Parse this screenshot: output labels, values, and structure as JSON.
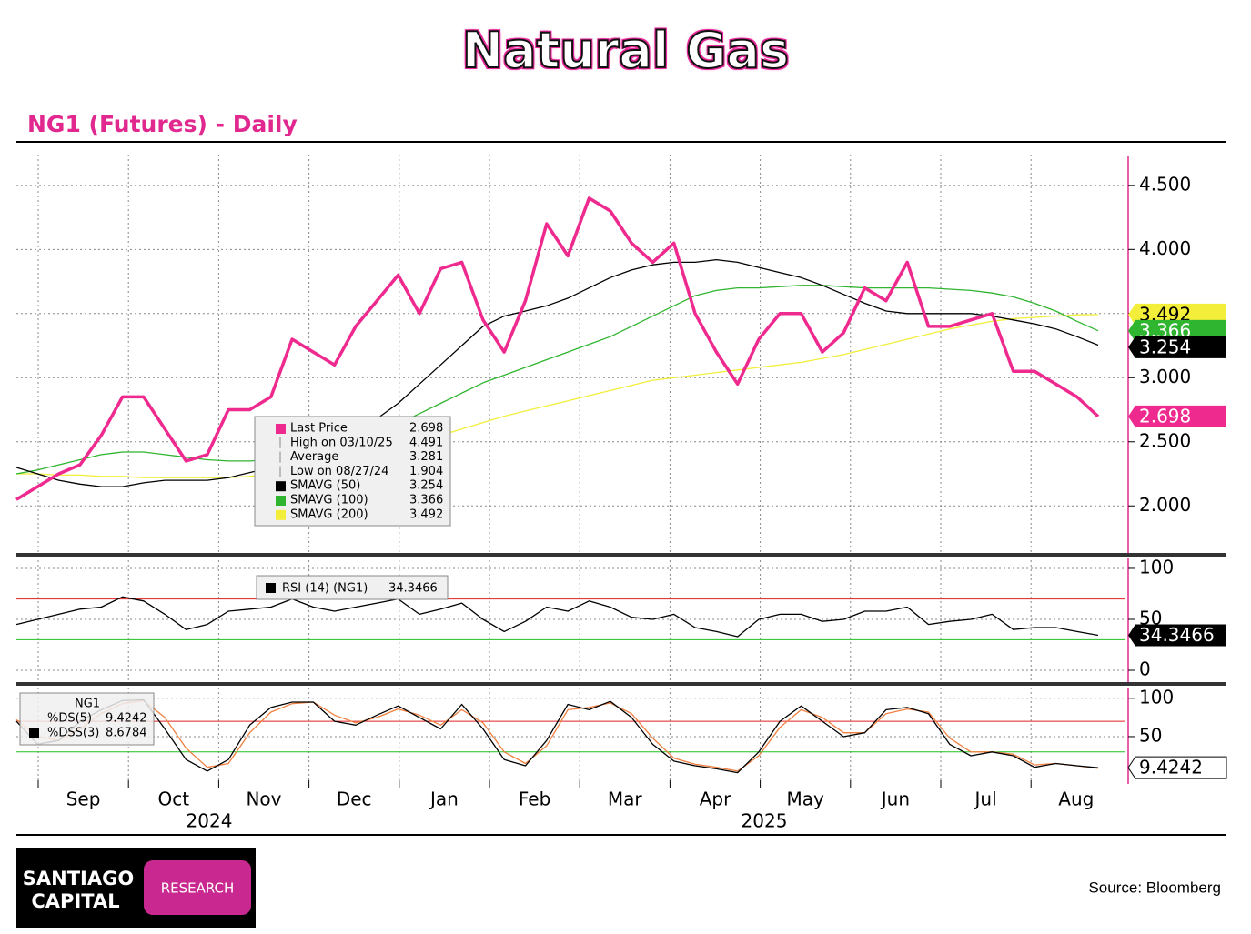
{
  "title": "Natural Gas",
  "subtitle": "NG1 (Futures) - Daily",
  "source": "Source: Bloomberg",
  "logo": {
    "line1": "SANTIAGO",
    "line2": "CAPITAL",
    "badge": "RESEARCH"
  },
  "categories": [
    "Sep",
    "Oct",
    "Nov",
    "Dec",
    "Jan",
    "Feb",
    "Mar",
    "Apr",
    "May",
    "Jun",
    "Jul",
    "Aug"
  ],
  "years": [
    "2024",
    "2025"
  ],
  "chart_data": [
    {
      "type": "line",
      "ylim": [
        1.64,
        4.74
      ],
      "yticks": [
        {
          "value": 2,
          "label": "2.000"
        },
        {
          "value": 2.5,
          "label": "2.500"
        },
        {
          "value": 3,
          "label": "3.000"
        },
        {
          "value": 3.5,
          "label": "3.500"
        },
        {
          "value": 4,
          "label": "4.000"
        },
        {
          "value": 4.5,
          "label": "4.500"
        }
      ],
      "grid": true,
      "series": [
        {
          "name": "Last Price",
          "color": "#ee2a8f",
          "values": [
            2.05,
            2.15,
            2.25,
            2.32,
            2.55,
            2.85,
            2.85,
            2.6,
            2.35,
            2.4,
            2.75,
            2.75,
            2.85,
            3.3,
            3.2,
            3.1,
            3.4,
            3.6,
            3.8,
            3.5,
            3.85,
            3.9,
            3.45,
            3.2,
            3.6,
            4.2,
            3.95,
            4.4,
            4.3,
            4.05,
            3.9,
            4.05,
            3.5,
            3.2,
            2.95,
            3.3,
            3.5,
            3.5,
            3.2,
            3.35,
            3.7,
            3.6,
            3.9,
            3.4,
            3.4,
            3.45,
            3.5,
            3.05,
            3.05,
            2.95,
            2.85,
            2.698
          ]
        },
        {
          "name": "SMAVG (50)",
          "color": "#000000",
          "values": [
            2.3,
            2.25,
            2.2,
            2.17,
            2.15,
            2.15,
            2.18,
            2.2,
            2.2,
            2.2,
            2.22,
            2.26,
            2.3,
            2.36,
            2.43,
            2.5,
            2.58,
            2.68,
            2.8,
            2.95,
            3.1,
            3.25,
            3.4,
            3.48,
            3.52,
            3.56,
            3.62,
            3.7,
            3.78,
            3.84,
            3.88,
            3.9,
            3.9,
            3.92,
            3.9,
            3.86,
            3.82,
            3.78,
            3.72,
            3.65,
            3.58,
            3.52,
            3.5,
            3.5,
            3.5,
            3.5,
            3.48,
            3.45,
            3.42,
            3.38,
            3.32,
            3.254
          ]
        },
        {
          "name": "SMAVG (100)",
          "color": "#2fb52f",
          "values": [
            2.25,
            2.28,
            2.32,
            2.36,
            2.4,
            2.42,
            2.42,
            2.4,
            2.38,
            2.36,
            2.35,
            2.35,
            2.36,
            2.38,
            2.42,
            2.46,
            2.5,
            2.56,
            2.64,
            2.72,
            2.8,
            2.88,
            2.96,
            3.02,
            3.08,
            3.14,
            3.2,
            3.26,
            3.32,
            3.4,
            3.48,
            3.56,
            3.64,
            3.68,
            3.7,
            3.7,
            3.71,
            3.72,
            3.72,
            3.71,
            3.7,
            3.7,
            3.7,
            3.7,
            3.69,
            3.68,
            3.66,
            3.63,
            3.58,
            3.52,
            3.44,
            3.366
          ]
        },
        {
          "name": "SMAVG (200)",
          "color": "#f2ee3a",
          "values": [
            2.25,
            2.25,
            2.24,
            2.24,
            2.23,
            2.23,
            2.22,
            2.22,
            2.22,
            2.22,
            2.22,
            2.23,
            2.25,
            2.28,
            2.31,
            2.34,
            2.38,
            2.42,
            2.46,
            2.5,
            2.55,
            2.6,
            2.65,
            2.7,
            2.74,
            2.78,
            2.82,
            2.86,
            2.9,
            2.94,
            2.98,
            3.0,
            3.02,
            3.04,
            3.06,
            3.08,
            3.1,
            3.12,
            3.15,
            3.18,
            3.22,
            3.26,
            3.3,
            3.34,
            3.38,
            3.41,
            3.44,
            3.46,
            3.47,
            3.48,
            3.49,
            3.492
          ]
        }
      ],
      "stats": [
        {
          "label": "High on 03/10/25",
          "value": 4.491
        },
        {
          "label": "Average",
          "value": 3.281
        },
        {
          "label": "Low on 08/27/24",
          "value": 1.904
        }
      ]
    },
    {
      "type": "line",
      "ylim": [
        -10.7,
        108
      ],
      "yticks": [
        0,
        50,
        100
      ],
      "grid": true,
      "ref_lines": [
        {
          "value": 70,
          "color": "#e02020"
        },
        {
          "value": 30,
          "color": "#20c020"
        }
      ],
      "series": [
        {
          "name": "RSI (14) (NG1)",
          "color": "#000000",
          "values": [
            45,
            50,
            55,
            60,
            62,
            72,
            68,
            55,
            40,
            45,
            58,
            60,
            62,
            70,
            62,
            58,
            62,
            66,
            70,
            55,
            60,
            66,
            50,
            38,
            48,
            62,
            58,
            68,
            62,
            52,
            50,
            55,
            42,
            38,
            33,
            50,
            55,
            55,
            48,
            50,
            58,
            58,
            62,
            45,
            48,
            50,
            55,
            40,
            42,
            42,
            38,
            34.3466
          ]
        }
      ]
    },
    {
      "type": "line",
      "title": "NG1",
      "ylim": [
        -7,
        114
      ],
      "yticks": [
        50,
        100
      ],
      "grid": true,
      "ref_lines": [
        {
          "value": 70,
          "color": "#e02020"
        },
        {
          "value": 30,
          "color": "#20c020"
        }
      ],
      "series": [
        {
          "name": "%DS(5)",
          "color": "#000000",
          "values": [
            70,
            40,
            45,
            70,
            85,
            97,
            98,
            60,
            20,
            5,
            20,
            65,
            88,
            95,
            95,
            70,
            65,
            78,
            90,
            75,
            60,
            92,
            60,
            20,
            12,
            45,
            92,
            85,
            96,
            75,
            40,
            18,
            12,
            8,
            3,
            30,
            70,
            90,
            70,
            50,
            55,
            85,
            88,
            80,
            40,
            25,
            30,
            25,
            10,
            15,
            12,
            9.4242
          ]
        },
        {
          "name": "%DSS(3)",
          "color": "#f08040",
          "values": [
            72,
            50,
            45,
            60,
            80,
            93,
            97,
            75,
            35,
            10,
            15,
            55,
            82,
            93,
            95,
            78,
            68,
            75,
            86,
            78,
            65,
            85,
            68,
            30,
            15,
            38,
            85,
            88,
            94,
            80,
            48,
            22,
            14,
            10,
            5,
            25,
            62,
            85,
            75,
            55,
            55,
            80,
            86,
            82,
            48,
            30,
            30,
            27,
            13,
            15,
            12,
            8.6784
          ]
        }
      ]
    }
  ]
}
